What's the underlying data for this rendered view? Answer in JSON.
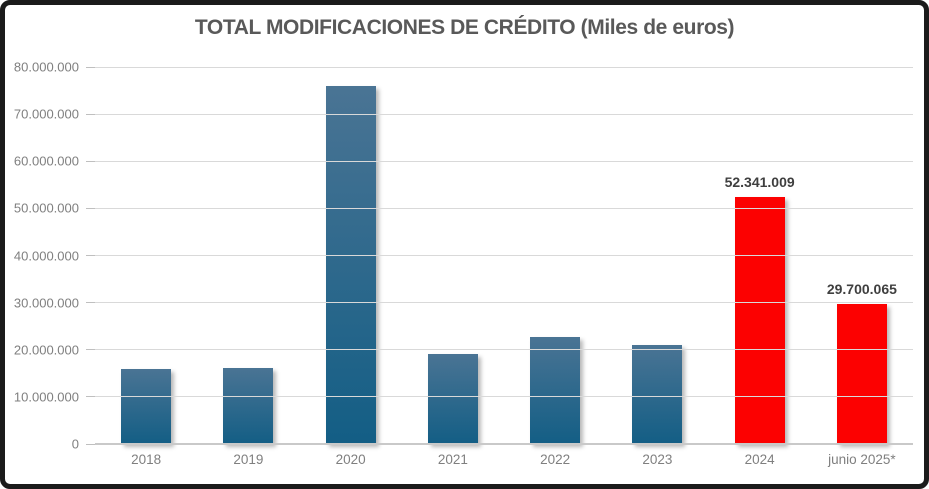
{
  "chart_data": {
    "type": "bar",
    "title": "TOTAL MODIFICACIONES DE CRÉDITO (Miles de euros)",
    "xlabel": "",
    "ylabel": "",
    "ylim": [
      0,
      80000000
    ],
    "grid": true,
    "legend": false,
    "y_ticks": [
      {
        "value": 0,
        "label": "0"
      },
      {
        "value": 10000000,
        "label": "10.000.000"
      },
      {
        "value": 20000000,
        "label": "20.000.000"
      },
      {
        "value": 30000000,
        "label": "30.000.000"
      },
      {
        "value": 40000000,
        "label": "40.000.000"
      },
      {
        "value": 50000000,
        "label": "50.000.000"
      },
      {
        "value": 60000000,
        "label": "60.000.000"
      },
      {
        "value": 70000000,
        "label": "70.000.000"
      },
      {
        "value": 80000000,
        "label": "80.000.000"
      }
    ],
    "categories": [
      "2018",
      "2019",
      "2020",
      "2021",
      "2022",
      "2023",
      "2024",
      "junio 2025*"
    ],
    "bars": [
      {
        "category": "2018",
        "value": 16000000,
        "color": "blue",
        "data_label": ""
      },
      {
        "category": "2019",
        "value": 16200000,
        "color": "blue",
        "data_label": ""
      },
      {
        "category": "2020",
        "value": 76000000,
        "color": "blue",
        "data_label": ""
      },
      {
        "category": "2021",
        "value": 19000000,
        "color": "blue",
        "data_label": ""
      },
      {
        "category": "2022",
        "value": 22800000,
        "color": "blue",
        "data_label": ""
      },
      {
        "category": "2023",
        "value": 21000000,
        "color": "blue",
        "data_label": ""
      },
      {
        "category": "2024",
        "value": 52341009,
        "color": "red",
        "data_label": "52.341.009"
      },
      {
        "category": "junio 2025*",
        "value": 29700065,
        "color": "red",
        "data_label": "29.700.065"
      }
    ],
    "colors": {
      "bar_blue_top": "#4a7494",
      "bar_blue_bottom": "#135e85",
      "bar_red": "#fc0101",
      "gridline": "#d9d9d9",
      "axis_text": "#7f7f7f",
      "title_text": "#595959",
      "data_label_text": "#3f3f3f",
      "frame_border": "#1b1b1b"
    }
  }
}
